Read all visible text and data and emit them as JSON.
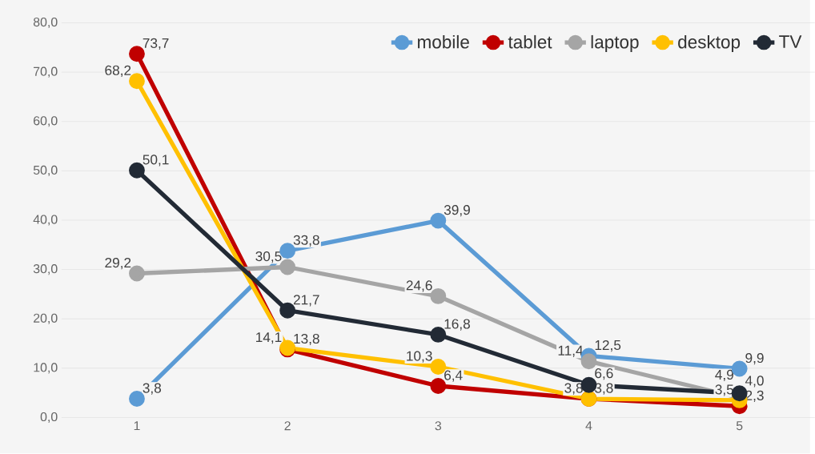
{
  "chart_data": {
    "type": "line",
    "categories": [
      "1",
      "2",
      "3",
      "4",
      "5"
    ],
    "series": [
      {
        "name": "mobile",
        "color": "#5b9bd5",
        "values": [
          3.8,
          33.8,
          39.9,
          12.5,
          9.9
        ],
        "value_labels": [
          "3,8",
          "33,8",
          "39,9",
          "12,5",
          "9,9"
        ]
      },
      {
        "name": "tablet",
        "color": "#c00000",
        "values": [
          73.7,
          13.8,
          6.4,
          3.8,
          2.3
        ],
        "value_labels": [
          "73,7",
          "13,8",
          "6,4",
          "3,8",
          "2,3"
        ]
      },
      {
        "name": "laptop",
        "color": "#a5a5a5",
        "values": [
          29.2,
          30.5,
          24.6,
          11.4,
          4.0
        ],
        "value_labels": [
          "29,2",
          "30,5",
          "24,6",
          "11,4",
          "4,0"
        ]
      },
      {
        "name": "desktop",
        "color": "#ffc000",
        "values": [
          68.2,
          14.1,
          10.3,
          3.8,
          3.5
        ],
        "value_labels": [
          "68,2",
          "14,1",
          "10,3",
          "3,8",
          "3,5"
        ]
      },
      {
        "name": "TV",
        "color": "#222a35",
        "values": [
          50.1,
          21.7,
          16.8,
          6.6,
          4.9
        ],
        "value_labels": [
          "50,1",
          "21,7",
          "16,8",
          "6,6",
          "4,9"
        ]
      }
    ],
    "ylim": [
      0,
      80
    ],
    "yticks": [
      {
        "value": 0,
        "label": "0,0"
      },
      {
        "value": 10,
        "label": "10,0"
      },
      {
        "value": 20,
        "label": "20,0"
      },
      {
        "value": 30,
        "label": "30,0"
      },
      {
        "value": 40,
        "label": "40,0"
      },
      {
        "value": 50,
        "label": "50,0"
      },
      {
        "value": 60,
        "label": "60,0"
      },
      {
        "value": 70,
        "label": "70,0"
      },
      {
        "value": 80,
        "label": "80,0"
      }
    ],
    "grid": "y",
    "legend": "top right",
    "marker": "circle",
    "line_style": "solid"
  }
}
